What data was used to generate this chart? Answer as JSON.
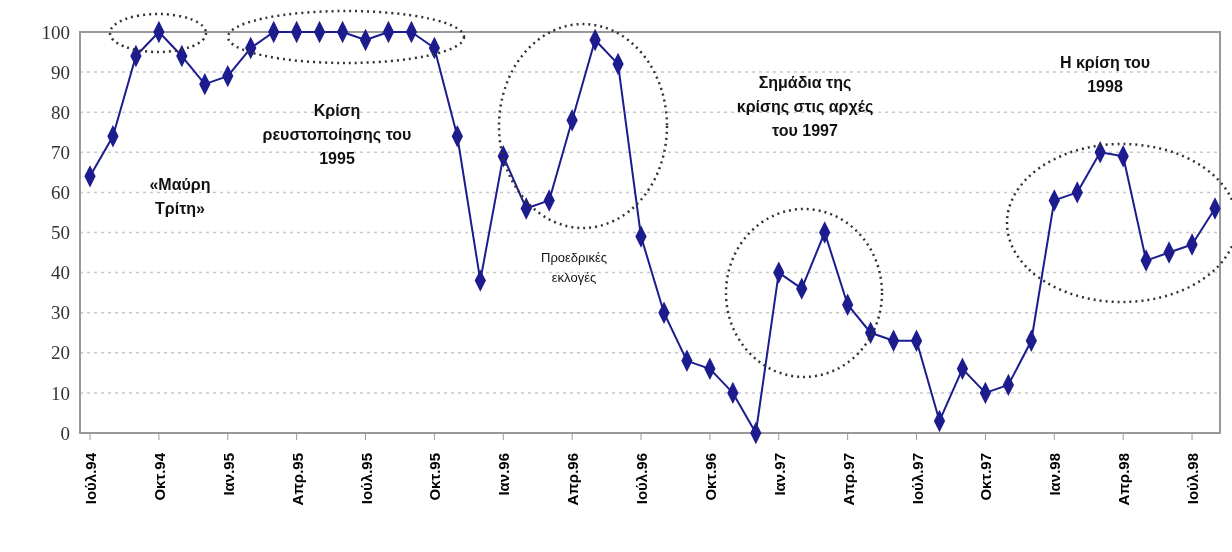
{
  "chart_data": {
    "type": "line",
    "categories": [
      "Ιούλ.94",
      null,
      null,
      "Οκτ.94",
      null,
      null,
      "Ιαν.95",
      null,
      null,
      "Απρ.95",
      null,
      null,
      "Ιούλ.95",
      null,
      null,
      "Οκτ.95",
      null,
      null,
      "Ιαν.96",
      null,
      null,
      "Απρ.96",
      null,
      null,
      "Ιούλ.96",
      null,
      null,
      "Οκτ.96",
      null,
      null,
      "Ιαν.97",
      null,
      null,
      "Απρ.97",
      null,
      null,
      "Ιούλ.97",
      null,
      null,
      "Οκτ.97",
      null,
      null,
      "Ιαν.98",
      null,
      null,
      "Απρ.98",
      null,
      null,
      "Ιούλ.98",
      null
    ],
    "series": [
      {
        "color": "#1c1c8f",
        "values": [
          64,
          74,
          94,
          100,
          94,
          87,
          89,
          96,
          100,
          100,
          100,
          100,
          98,
          100,
          100,
          96,
          74,
          38,
          69,
          56,
          58,
          78,
          98,
          92,
          49,
          30,
          18,
          16,
          10,
          0,
          40,
          36,
          50,
          32,
          25,
          23,
          23,
          3,
          16,
          10,
          12,
          23,
          58,
          60,
          70,
          69,
          43,
          45,
          47,
          56
        ]
      }
    ],
    "ylim": [
      0,
      100
    ],
    "yticks": [
      0,
      10,
      20,
      30,
      40,
      50,
      60,
      70,
      80,
      90,
      100
    ],
    "grid": "y",
    "marker": "diamond",
    "line_style": "solid",
    "annotations": [
      "«Μαύρη Τρίτη»",
      "Κρίση ρευστοποίησης του 1995",
      "Προεδρικές εκλογές",
      "Σημάδια της κρίσης στις αρχές του 1997",
      "Η κρίση του 1998"
    ]
  }
}
